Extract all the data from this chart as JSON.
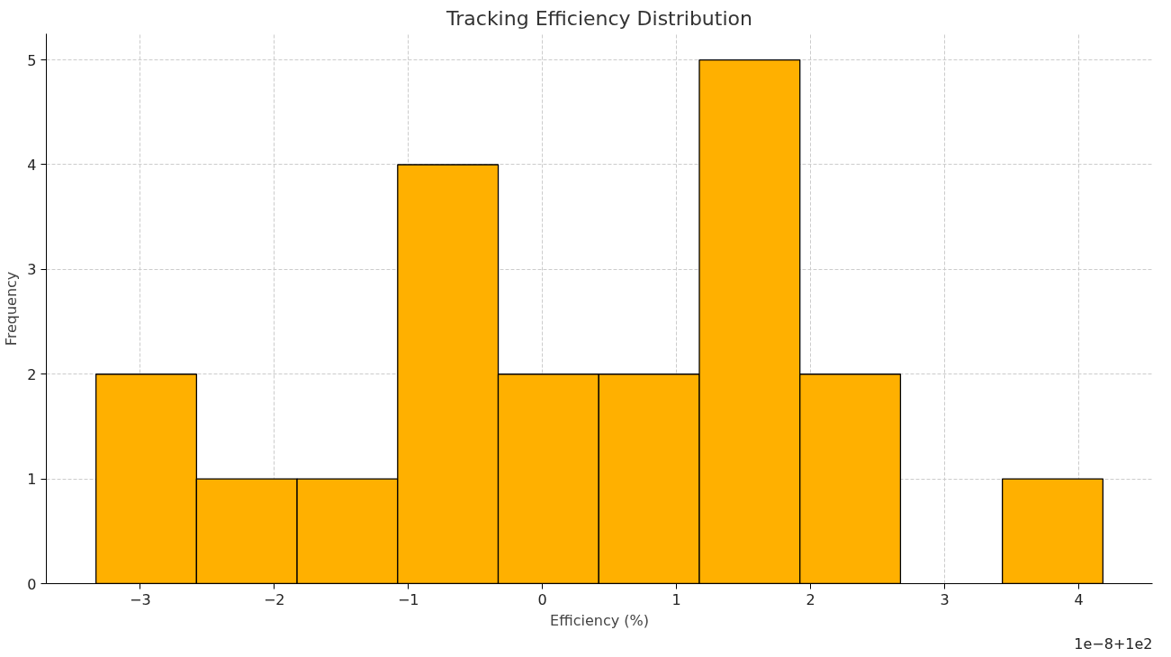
{
  "chart_data": {
    "type": "histogram",
    "title": "Tracking Efficiency Distribution",
    "xlabel": "Efficiency (%)",
    "ylabel": "Frequency",
    "bins": [
      -3.33,
      -2.58,
      -1.83,
      -1.08,
      -0.33,
      0.42,
      1.17,
      1.92,
      2.67,
      3.43,
      4.18
    ],
    "values": [
      2,
      1,
      1,
      4,
      2,
      2,
      5,
      2,
      0,
      1
    ],
    "color": "#ffb000",
    "xlim": [
      -3.7,
      4.55
    ],
    "ylim": [
      0,
      5.25
    ],
    "xticks": [
      {
        "value": -3,
        "label": "−3"
      },
      {
        "value": -2,
        "label": "−2"
      },
      {
        "value": -1,
        "label": "−1"
      },
      0,
      1,
      2,
      3,
      4
    ],
    "yticks": [
      0,
      1,
      2,
      3,
      4,
      5
    ],
    "grid": true,
    "annotations": [
      "1e−8+1e2"
    ]
  }
}
